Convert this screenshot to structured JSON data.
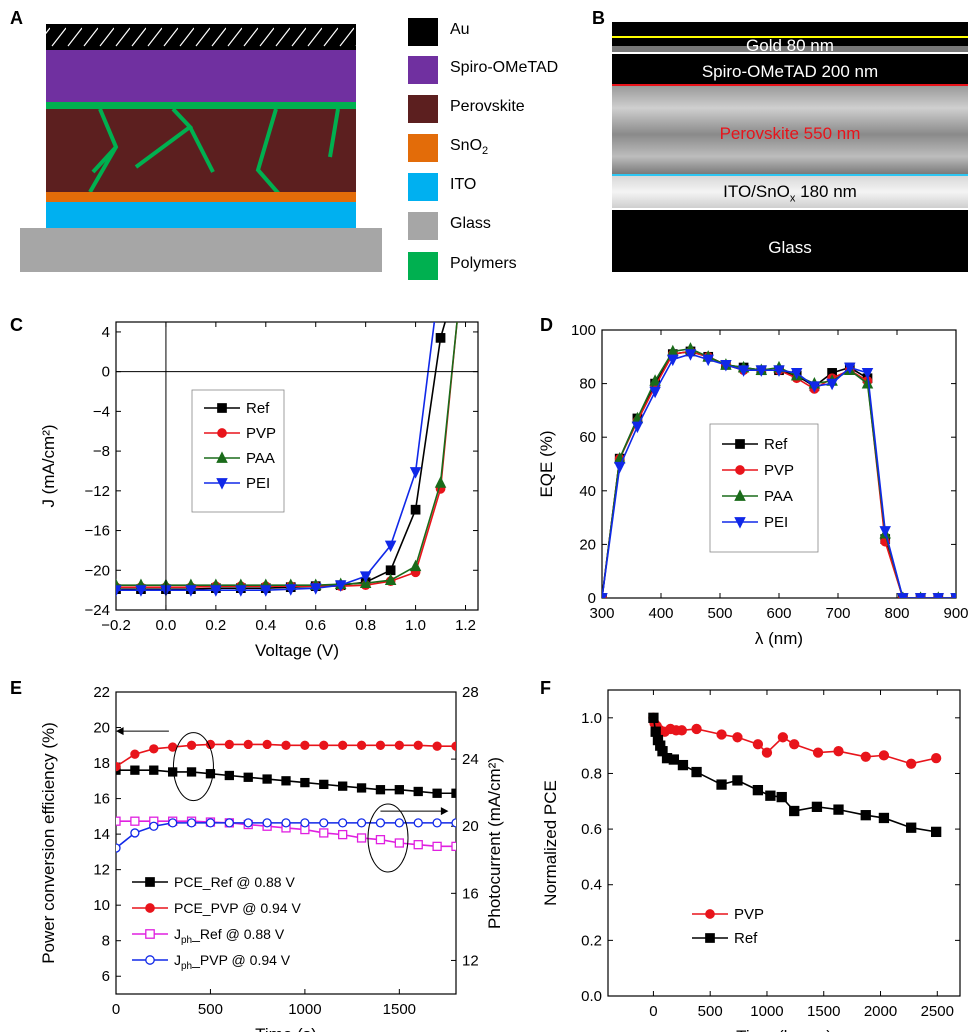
{
  "panels": {
    "A": "A",
    "B": "B",
    "C": "C",
    "D": "D",
    "E": "E",
    "F": "F"
  },
  "layer_legend": [
    {
      "label": "Au",
      "color": "#000000"
    },
    {
      "label": "Spiro-OMeTAD",
      "color": "#7030a0"
    },
    {
      "label": "Perovskite",
      "color": "#5c1f1f"
    },
    {
      "label": "SnO",
      "sub": "2",
      "color": "#e36c09"
    },
    {
      "label": "ITO",
      "color": "#00b0f0"
    },
    {
      "label": "Glass",
      "color": "#a6a6a6"
    },
    {
      "label": "Polymers",
      "color": "#00b050"
    }
  ],
  "sem": {
    "gold": "Gold 80 nm",
    "spiro": "Spiro-OMeTAD 200 nm",
    "perovskite": "Perovskite 550 nm",
    "ito_a": "ITO/SnO",
    "ito_sub": "x",
    "ito_b": " 180 nm",
    "glass": "Glass"
  },
  "chart_data": [
    {
      "id": "C",
      "type": "line",
      "xlabel": "Voltage (V)",
      "ylabel": "J (mA/cm²)",
      "xlim": [
        -0.2,
        1.25
      ],
      "ylim": [
        -24,
        5
      ],
      "xticks": [
        -0.2,
        0.0,
        0.2,
        0.4,
        0.6,
        0.8,
        1.0,
        1.2
      ],
      "xtick_labels": [
        "−0.2",
        "0.0",
        "0.2",
        "0.4",
        "0.6",
        "0.8",
        "1.0",
        "1.2"
      ],
      "yticks": [
        4,
        0,
        -4,
        -8,
        -12,
        -16,
        -20,
        -24
      ],
      "ytick_labels": [
        "4",
        "0",
        "−4",
        "−8",
        "−12",
        "−16",
        "−20",
        "−24"
      ],
      "legend_position": "center-left",
      "series": [
        {
          "name": "Ref",
          "color": "#000000",
          "marker": "square",
          "x": [
            -0.2,
            -0.1,
            0,
            0.1,
            0.2,
            0.3,
            0.4,
            0.5,
            0.6,
            0.7,
            0.8,
            0.9,
            1.0,
            1.1,
            1.13
          ],
          "y": [
            -21.9,
            -21.9,
            -21.9,
            -21.9,
            -21.8,
            -21.8,
            -21.8,
            -21.7,
            -21.6,
            -21.5,
            -21.2,
            -20.0,
            -13.9,
            3.4,
            6
          ]
        },
        {
          "name": "PVP",
          "color": "#e8141b",
          "marker": "circle",
          "x": [
            -0.2,
            -0.1,
            0,
            0.1,
            0.2,
            0.3,
            0.4,
            0.5,
            0.6,
            0.7,
            0.8,
            0.9,
            1.0,
            1.1,
            1.17
          ],
          "y": [
            -21.7,
            -21.7,
            -21.7,
            -21.7,
            -21.6,
            -21.6,
            -21.6,
            -21.6,
            -21.6,
            -21.6,
            -21.5,
            -21.1,
            -20.2,
            -11.8,
            6
          ]
        },
        {
          "name": "PAA",
          "color": "#1a6b1a",
          "marker": "triangle-up",
          "x": [
            -0.2,
            -0.1,
            0,
            0.1,
            0.2,
            0.3,
            0.4,
            0.5,
            0.6,
            0.7,
            0.8,
            0.9,
            1.0,
            1.1,
            1.17
          ],
          "y": [
            -21.5,
            -21.5,
            -21.5,
            -21.5,
            -21.5,
            -21.5,
            -21.5,
            -21.5,
            -21.5,
            -21.4,
            -21.3,
            -21.0,
            -19.6,
            -11.2,
            6
          ]
        },
        {
          "name": "PEI",
          "color": "#1028e8",
          "marker": "triangle-down",
          "x": [
            -0.2,
            -0.1,
            0,
            0.1,
            0.2,
            0.3,
            0.4,
            0.5,
            0.6,
            0.7,
            0.8,
            0.9,
            1.0,
            1.08
          ],
          "y": [
            -22.0,
            -22.0,
            -22.0,
            -22.0,
            -22.0,
            -22.0,
            -22.0,
            -21.9,
            -21.8,
            -21.5,
            -20.6,
            -17.5,
            -10.1,
            6
          ]
        }
      ]
    },
    {
      "id": "D",
      "type": "line",
      "xlabel": "λ (nm)",
      "ylabel": "EQE (%)",
      "xlim": [
        300,
        900
      ],
      "ylim": [
        0,
        100
      ],
      "xticks": [
        300,
        400,
        500,
        600,
        700,
        800,
        900
      ],
      "yticks": [
        0,
        20,
        40,
        60,
        80,
        100
      ],
      "legend_position": "center",
      "series": [
        {
          "name": "Ref",
          "color": "#000000",
          "marker": "square",
          "x": [
            300,
            330,
            360,
            390,
            420,
            450,
            480,
            510,
            540,
            570,
            600,
            630,
            660,
            690,
            720,
            750,
            780,
            810,
            840,
            870,
            900
          ],
          "y": [
            0,
            52,
            67,
            80,
            91,
            92,
            90,
            87,
            86,
            85,
            85,
            83,
            79,
            84,
            86,
            82,
            22,
            0,
            0,
            0,
            0
          ]
        },
        {
          "name": "PVP",
          "color": "#e8141b",
          "marker": "circle",
          "x": [
            300,
            330,
            360,
            390,
            420,
            450,
            480,
            510,
            540,
            570,
            600,
            630,
            660,
            690,
            720,
            750,
            780,
            810,
            840,
            870,
            900
          ],
          "y": [
            0,
            52,
            66,
            79,
            91,
            92,
            90,
            87,
            85,
            85,
            85,
            82,
            78,
            82,
            85,
            81,
            21,
            0,
            0,
            0,
            0
          ]
        },
        {
          "name": "PAA",
          "color": "#1a6b1a",
          "marker": "triangle-up",
          "x": [
            300,
            330,
            360,
            390,
            420,
            450,
            480,
            510,
            540,
            570,
            600,
            630,
            660,
            690,
            720,
            750,
            780,
            810,
            840,
            870,
            900
          ],
          "y": [
            0,
            52,
            67,
            81,
            92,
            93,
            90,
            87,
            86,
            85,
            86,
            83,
            80,
            81,
            85,
            80,
            24,
            0,
            0,
            0,
            0
          ]
        },
        {
          "name": "PEI",
          "color": "#1028e8",
          "marker": "triangle-down",
          "x": [
            300,
            330,
            360,
            390,
            420,
            450,
            480,
            510,
            540,
            570,
            600,
            630,
            660,
            690,
            720,
            750,
            780,
            810,
            840,
            870,
            900
          ],
          "y": [
            0,
            49,
            64,
            77,
            89,
            91,
            89,
            87,
            85,
            85,
            85,
            84,
            79,
            80,
            86,
            84,
            25,
            0,
            0,
            0,
            0
          ]
        }
      ]
    },
    {
      "id": "E",
      "type": "line",
      "xlabel": "Time (s)",
      "ylabel": "Power conversion efficiency (%)",
      "y2label": "Photocurrent (mA/cm²)",
      "xlim": [
        0,
        1800
      ],
      "ylim": [
        5,
        22
      ],
      "y2lim": [
        10,
        28
      ],
      "xticks": [
        0,
        500,
        1000,
        1500
      ],
      "yticks": [
        6,
        8,
        10,
        12,
        14,
        16,
        18,
        20,
        22
      ],
      "y2ticks": [
        12,
        16,
        20,
        24,
        28
      ],
      "legend_position": "bottom-left",
      "series": [
        {
          "name": "PCE_Ref @ 0.88 V",
          "color": "#000000",
          "marker": "square",
          "filled": true,
          "axis": "left",
          "x": [
            0,
            100,
            200,
            300,
            400,
            500,
            600,
            700,
            800,
            900,
            1000,
            1100,
            1200,
            1300,
            1400,
            1500,
            1600,
            1700,
            1800
          ],
          "y": [
            17.6,
            17.6,
            17.6,
            17.5,
            17.5,
            17.4,
            17.3,
            17.2,
            17.1,
            17.0,
            16.9,
            16.8,
            16.7,
            16.6,
            16.5,
            16.5,
            16.4,
            16.3,
            16.3
          ]
        },
        {
          "name": "PCE_PVP @ 0.94 V",
          "color": "#e8141b",
          "marker": "circle",
          "filled": true,
          "axis": "left",
          "x": [
            0,
            100,
            200,
            300,
            400,
            500,
            600,
            700,
            800,
            900,
            1000,
            1100,
            1200,
            1300,
            1400,
            1500,
            1600,
            1700,
            1800
          ],
          "y": [
            17.8,
            18.5,
            18.8,
            18.9,
            19.0,
            19.05,
            19.05,
            19.05,
            19.05,
            19.0,
            19.0,
            19.0,
            19.0,
            19.0,
            19.0,
            19.0,
            19.0,
            18.95,
            18.95
          ]
        },
        {
          "name": "J_ph_Ref @ 0.88 V",
          "color": "#e020e0",
          "marker": "square",
          "filled": false,
          "axis": "right",
          "x": [
            0,
            100,
            200,
            300,
            400,
            500,
            600,
            700,
            800,
            900,
            1000,
            1100,
            1200,
            1300,
            1400,
            1500,
            1600,
            1700,
            1800
          ],
          "y": [
            20.3,
            20.3,
            20.3,
            20.3,
            20.3,
            20.25,
            20.2,
            20.1,
            20.0,
            19.9,
            19.8,
            19.6,
            19.5,
            19.3,
            19.2,
            19.0,
            18.9,
            18.8,
            18.8
          ]
        },
        {
          "name": "J_ph_PVP @ 0.94 V",
          "color": "#1028e8",
          "marker": "circle",
          "filled": false,
          "axis": "right",
          "x": [
            0,
            100,
            200,
            300,
            400,
            500,
            600,
            700,
            800,
            900,
            1000,
            1100,
            1200,
            1300,
            1400,
            1500,
            1600,
            1700,
            1800
          ],
          "y": [
            18.7,
            19.6,
            20.0,
            20.2,
            20.2,
            20.2,
            20.2,
            20.2,
            20.2,
            20.2,
            20.2,
            20.2,
            20.2,
            20.2,
            20.2,
            20.2,
            20.2,
            20.2,
            20.2
          ]
        }
      ]
    },
    {
      "id": "F",
      "type": "line",
      "xlabel": "Time (hours)",
      "ylabel": "Normalized PCE",
      "xlim": [
        -400,
        2700
      ],
      "ylim": [
        0,
        1.1
      ],
      "xticks": [
        0,
        500,
        1000,
        1500,
        2000,
        2500
      ],
      "yticks": [
        0.0,
        0.2,
        0.4,
        0.6,
        0.8,
        1.0
      ],
      "ytick_labels": [
        "0.0",
        "0.2",
        "0.4",
        "0.6",
        "0.8",
        "1.0"
      ],
      "legend_position": "bottom-left",
      "series": [
        {
          "name": "PVP",
          "color": "#e8141b",
          "marker": "circle",
          "x": [
            0,
            10,
            30,
            60,
            100,
            150,
            200,
            250,
            380,
            600,
            740,
            920,
            1000,
            1140,
            1240,
            1450,
            1630,
            1870,
            2030,
            2270,
            2490
          ],
          "y": [
            1.0,
            0.98,
            0.97,
            0.955,
            0.95,
            0.96,
            0.955,
            0.955,
            0.96,
            0.94,
            0.93,
            0.905,
            0.875,
            0.93,
            0.905,
            0.875,
            0.88,
            0.86,
            0.865,
            0.835,
            0.855
          ]
        },
        {
          "name": "Ref",
          "color": "#000000",
          "marker": "square",
          "x": [
            0,
            20,
            40,
            60,
            80,
            120,
            180,
            260,
            380,
            600,
            740,
            920,
            1030,
            1130,
            1240,
            1440,
            1630,
            1870,
            2030,
            2270,
            2490
          ],
          "y": [
            1.0,
            0.95,
            0.92,
            0.9,
            0.88,
            0.855,
            0.85,
            0.83,
            0.805,
            0.76,
            0.775,
            0.74,
            0.72,
            0.715,
            0.665,
            0.68,
            0.67,
            0.65,
            0.64,
            0.605,
            0.59
          ]
        }
      ]
    }
  ]
}
